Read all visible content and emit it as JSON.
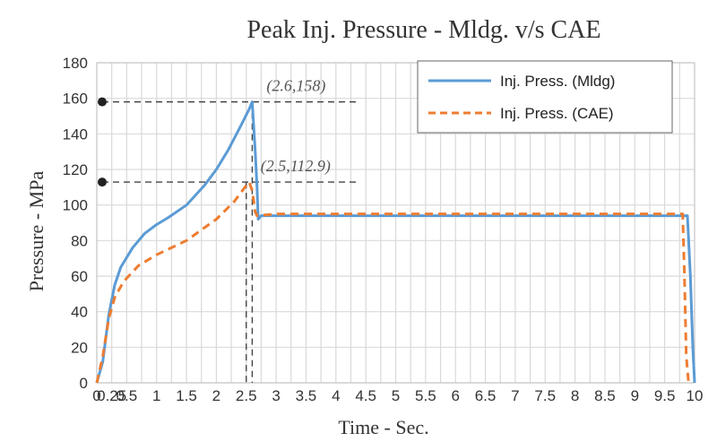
{
  "chart_data": {
    "type": "line",
    "title": "Peak Inj. Pressure - Mldg. v/s CAE",
    "xlabel": "Time - Sec.",
    "ylabel": "Pressure - MPa",
    "xlim": [
      0,
      10
    ],
    "ylim": [
      0,
      180
    ],
    "yticks": [
      0,
      20,
      40,
      60,
      80,
      100,
      120,
      140,
      160,
      180
    ],
    "ytick_labels": [
      "0",
      "20",
      "40",
      "60",
      "80",
      "100",
      "120",
      "140",
      "160",
      "180"
    ],
    "xticks": [
      0,
      0.25,
      0.5,
      1,
      1.5,
      2,
      2.5,
      3,
      3.5,
      4,
      4.5,
      5,
      5.5,
      6,
      6.5,
      7,
      7.5,
      8,
      8.5,
      9,
      9.5,
      10
    ],
    "xtick_labels": [
      "0",
      "0.25",
      "0.5",
      "1",
      "1.5",
      "2",
      "2.5",
      "3",
      "3.5",
      "4",
      "4.5",
      "5",
      "5.5",
      "6",
      "6.5",
      "7",
      "7.5",
      "8",
      "8.5",
      "9",
      "9.5",
      "10"
    ],
    "grid": true,
    "legend_position": "top-right",
    "series": [
      {
        "name": "Inj. Press. (Mldg)",
        "color": "#5b9bd5",
        "style": "solid",
        "x": [
          0,
          0.1,
          0.2,
          0.3,
          0.4,
          0.6,
          0.8,
          1.0,
          1.2,
          1.5,
          1.8,
          2.0,
          2.2,
          2.4,
          2.55,
          2.6,
          2.65,
          2.68,
          2.7,
          2.75,
          3.0,
          5.0,
          7.0,
          9.0,
          9.88,
          9.93,
          9.97,
          10.0
        ],
        "y": [
          0,
          12,
          38,
          55,
          65,
          76,
          84,
          89,
          93,
          100,
          111,
          120,
          131,
          144,
          154,
          158,
          130,
          110,
          92,
          94,
          94,
          94,
          94,
          94,
          94,
          60,
          20,
          0
        ]
      },
      {
        "name": "Inj. Press. (CAE)",
        "color": "#ed7d31",
        "style": "dashed",
        "x": [
          0,
          0.1,
          0.2,
          0.3,
          0.45,
          0.7,
          1.0,
          1.5,
          2.0,
          2.3,
          2.5,
          2.55,
          2.6,
          2.65,
          2.68,
          3.0,
          5.0,
          7.0,
          9.0,
          9.8,
          9.83,
          9.86,
          9.9
        ],
        "y": [
          0,
          15,
          36,
          48,
          57,
          66,
          72,
          80,
          92,
          102,
          111,
          112.9,
          108,
          96,
          94,
          95,
          95,
          95,
          95,
          95,
          60,
          15,
          0
        ]
      }
    ],
    "annotations": [
      {
        "text": "(2.6,158)",
        "x": 2.6,
        "y": 158
      },
      {
        "text": "(2.5,112.9)",
        "x": 2.5,
        "y": 112.9
      }
    ]
  }
}
